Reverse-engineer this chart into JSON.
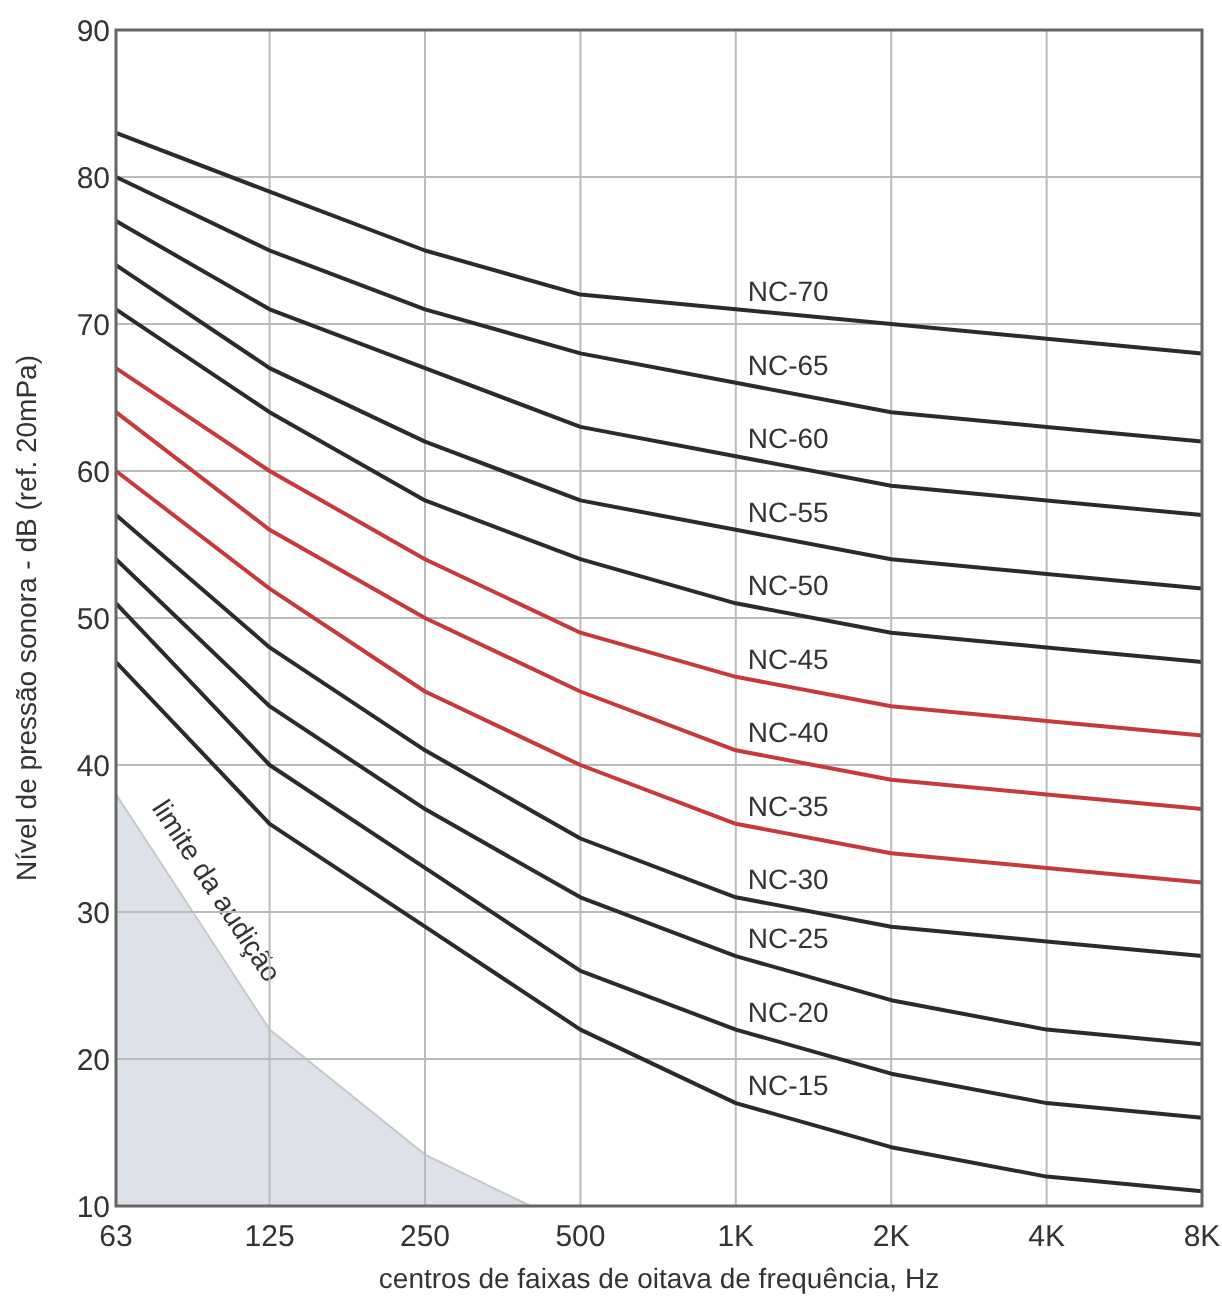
{
  "chart_data": {
    "type": "line",
    "xlabel": "centros de faixas de oitava de frequência, Hz",
    "ylabel": "Nível de pressão sonora - dB (ref. 20mPa)",
    "x": [
      63,
      125,
      250,
      500,
      1000,
      2000,
      4000,
      8000
    ],
    "log": "x",
    "xlim": [
      63,
      8000
    ],
    "xticks": [
      63,
      125,
      250,
      500,
      {
        "value": 1000,
        "label": "1K"
      },
      {
        "value": 2000,
        "label": "2K"
      },
      {
        "value": 4000,
        "label": "4K"
      },
      {
        "value": 8000,
        "label": "8K"
      }
    ],
    "ylim": [
      10,
      90
    ],
    "yticks": [
      10,
      20,
      30,
      40,
      50,
      60,
      70,
      80,
      90
    ],
    "grid": true,
    "series": [
      {
        "name": "limite da audição",
        "type": "area",
        "color": "#dde2ea",
        "x": [
          63,
          125,
          250,
          400
        ],
        "values": [
          38,
          22,
          13.5,
          10
        ]
      },
      {
        "name": "NC-15",
        "color": "#2b2b2b",
        "values": [
          47,
          36,
          29,
          22,
          17,
          14,
          12,
          11
        ]
      },
      {
        "name": "NC-20",
        "color": "#2b2b2b",
        "values": [
          51,
          40,
          33,
          26,
          22,
          19,
          17,
          16
        ]
      },
      {
        "name": "NC-25",
        "color": "#2b2b2b",
        "values": [
          54,
          44,
          37,
          31,
          27,
          24,
          22,
          21
        ]
      },
      {
        "name": "NC-30",
        "color": "#2b2b2b",
        "values": [
          57,
          48,
          41,
          35,
          31,
          29,
          28,
          27
        ]
      },
      {
        "name": "NC-35",
        "color": "#c8393b",
        "values": [
          60,
          52,
          45,
          40,
          36,
          34,
          33,
          32
        ]
      },
      {
        "name": "NC-40",
        "color": "#c8393b",
        "values": [
          64,
          56,
          50,
          45,
          41,
          39,
          38,
          37
        ]
      },
      {
        "name": "NC-45",
        "color": "#c8393b",
        "values": [
          67,
          60,
          54,
          49,
          46,
          44,
          43,
          42
        ]
      },
      {
        "name": "NC-50",
        "color": "#2b2b2b",
        "values": [
          71,
          64,
          58,
          54,
          51,
          49,
          48,
          47
        ]
      },
      {
        "name": "NC-55",
        "color": "#2b2b2b",
        "values": [
          74,
          67,
          62,
          58,
          56,
          54,
          53,
          52
        ]
      },
      {
        "name": "NC-60",
        "color": "#2b2b2b",
        "values": [
          77,
          71,
          67,
          63,
          61,
          59,
          58,
          57
        ]
      },
      {
        "name": "NC-65",
        "color": "#2b2b2b",
        "values": [
          80,
          75,
          71,
          68,
          66,
          64,
          63,
          62
        ]
      },
      {
        "name": "NC-70",
        "color": "#2b2b2b",
        "values": [
          83,
          79,
          75,
          72,
          71,
          70,
          69,
          68
        ]
      }
    ]
  }
}
